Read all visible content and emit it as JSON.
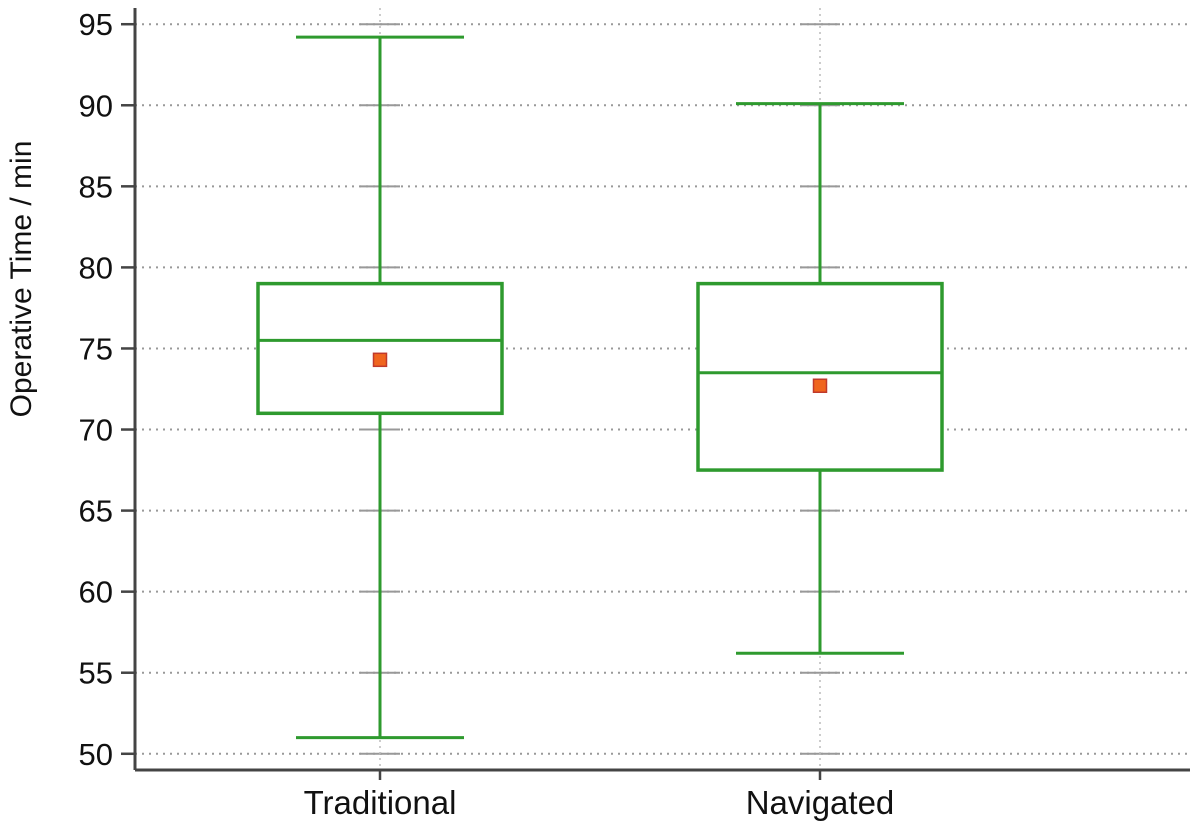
{
  "chart_data": {
    "type": "box",
    "title": "",
    "xlabel": "",
    "ylabel": "Operative Time / min",
    "ylim": [
      49,
      96
    ],
    "yticks": [
      50,
      55,
      60,
      65,
      70,
      75,
      80,
      85,
      90,
      95
    ],
    "grid": true,
    "categories": [
      "Traditional",
      "Navigated"
    ],
    "boxes": [
      {
        "category": "Traditional",
        "min": 51,
        "q1": 71,
        "median": 75.5,
        "q3": 79,
        "max": 94.2,
        "mean": 74.3
      },
      {
        "category": "Navigated",
        "min": 56.2,
        "q1": 67.5,
        "median": 73.5,
        "q3": 79,
        "max": 90.1,
        "mean": 72.7
      }
    ],
    "colors": {
      "box": "#2e9a2e",
      "mean_fill": "#f0651e",
      "mean_stroke": "#c0392b",
      "grid": "#999999",
      "axis": "#444444",
      "text": "#111111"
    }
  }
}
